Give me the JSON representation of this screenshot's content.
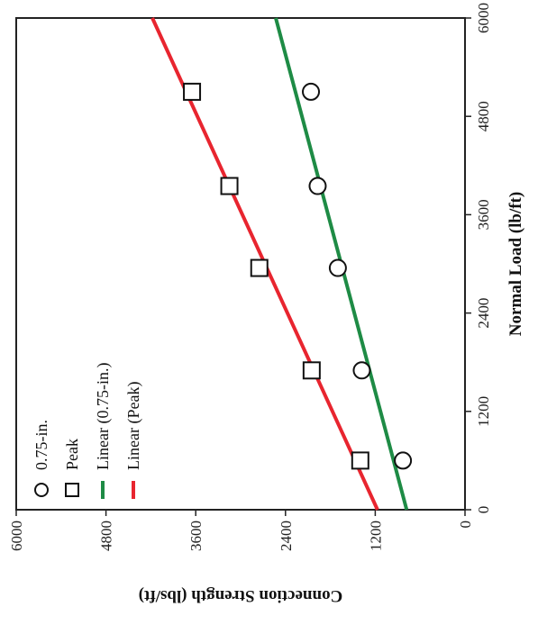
{
  "chart_data": {
    "type": "scatter",
    "orientation": "rotated-90-clockwise",
    "xlabel": "Normal Load (lb/ft)",
    "ylabel": "Connection Strength (lbs/ft)",
    "xlim": [
      0,
      6000
    ],
    "ylim": [
      0,
      6000
    ],
    "x_ticks": [
      "0",
      "1200",
      "2400",
      "3600",
      "4800",
      "6000"
    ],
    "y_ticks": [
      "0",
      "1200",
      "2400",
      "3600",
      "4800",
      "6000"
    ],
    "grid": false,
    "legend_position": "top-left",
    "series": [
      {
        "name": "0.75-in.",
        "marker": "circle",
        "color": "#111111",
        "points": [
          {
            "x": 600,
            "y": 830
          },
          {
            "x": 1700,
            "y": 1380
          },
          {
            "x": 2950,
            "y": 1700
          },
          {
            "x": 3950,
            "y": 1970
          },
          {
            "x": 5100,
            "y": 2060
          }
        ]
      },
      {
        "name": "Peak",
        "marker": "square",
        "color": "#111111",
        "points": [
          {
            "x": 600,
            "y": 1400
          },
          {
            "x": 1700,
            "y": 2050
          },
          {
            "x": 2950,
            "y": 2750
          },
          {
            "x": 3950,
            "y": 3150
          },
          {
            "x": 5100,
            "y": 3650
          }
        ]
      },
      {
        "name": "Linear (0.75-in.)",
        "type": "line",
        "color": "#1e8b45",
        "points": [
          {
            "x": 0,
            "y": 780
          },
          {
            "x": 6000,
            "y": 2530
          }
        ]
      },
      {
        "name": "Linear (Peak)",
        "type": "line",
        "color": "#e8252f",
        "points": [
          {
            "x": 0,
            "y": 1170
          },
          {
            "x": 6000,
            "y": 4180
          }
        ]
      }
    ]
  }
}
